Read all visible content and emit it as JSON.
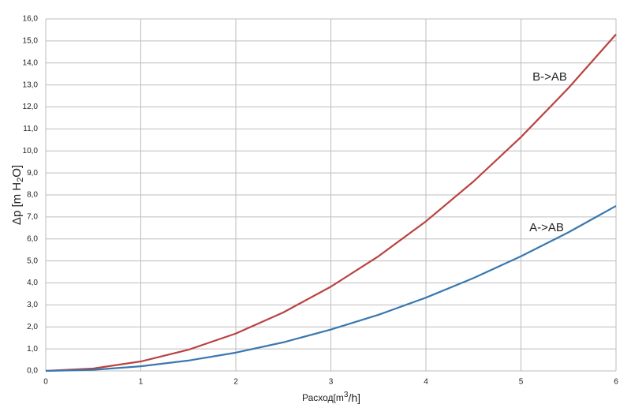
{
  "chart_data": {
    "type": "line",
    "ylabel": [
      "Δp [m H",
      "2",
      "O]"
    ],
    "xlabel": [
      "Расход[m",
      "3",
      "/h]"
    ],
    "x": [
      0,
      0.5,
      1,
      1.5,
      2,
      2.5,
      3,
      3.5,
      4,
      4.5,
      5,
      5.5,
      6
    ],
    "series": [
      {
        "name": "B->AB",
        "color": "#b84340",
        "values": [
          0,
          0.11,
          0.43,
          0.96,
          1.7,
          2.66,
          3.83,
          5.21,
          6.8,
          8.61,
          10.63,
          12.86,
          15.3
        ]
      },
      {
        "name": "A->AB",
        "color": "#3a78b0",
        "values": [
          0,
          0.05,
          0.21,
          0.47,
          0.83,
          1.3,
          1.88,
          2.55,
          3.33,
          4.22,
          5.21,
          6.3,
          7.5
        ]
      }
    ],
    "xlim": [
      0,
      6
    ],
    "xticks": [
      0,
      1,
      2,
      3,
      4,
      5,
      6
    ],
    "ylim": [
      0,
      16
    ],
    "yticks": [
      {
        "value": 0,
        "label": "0,0"
      },
      {
        "value": 1,
        "label": "1,0"
      },
      {
        "value": 2,
        "label": "2,0"
      },
      {
        "value": 3,
        "label": "3,0"
      },
      {
        "value": 4,
        "label": "4,0"
      },
      {
        "value": 5,
        "label": "5,0"
      },
      {
        "value": 6,
        "label": "6,0"
      },
      {
        "value": 7,
        "label": "7,0"
      },
      {
        "value": 8,
        "label": "8,0"
      },
      {
        "value": 9,
        "label": "9,0"
      },
      {
        "value": 10,
        "label": "10,0"
      },
      {
        "value": 11,
        "label": "11,0"
      },
      {
        "value": 12,
        "label": "12,0"
      },
      {
        "value": 13,
        "label": "13,0"
      },
      {
        "value": 14,
        "label": "14,0"
      },
      {
        "value": 15,
        "label": "15,0"
      },
      {
        "value": 16,
        "label": "16,0"
      }
    ],
    "grid": true
  }
}
